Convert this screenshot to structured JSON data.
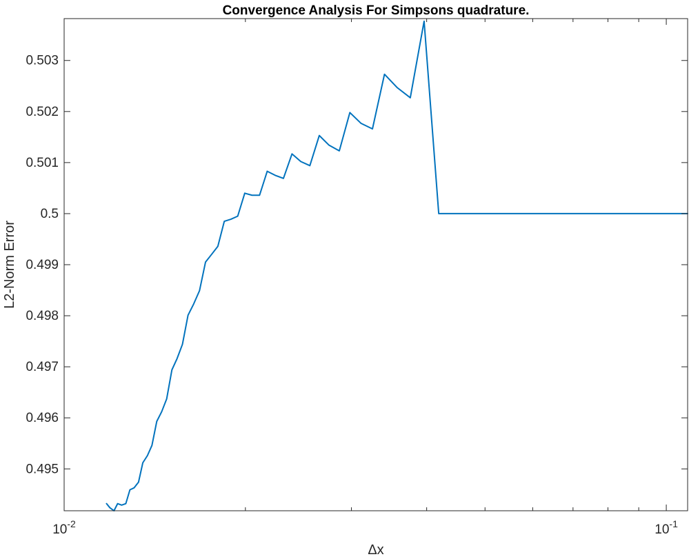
{
  "chart_data": {
    "type": "line",
    "title": "Convergence Analysis For Simpsons quadrature.",
    "xlabel": "Δx",
    "ylabel": "L2-Norm Error",
    "xscale": "log",
    "yscale": "linear",
    "xlim": [
      0.01,
      0.1085
    ],
    "ylim": [
      0.49418,
      0.50382
    ],
    "grid": false,
    "legend": "none",
    "x_ticks": [
      {
        "value": 0.01,
        "base": "10",
        "exp": "-2"
      },
      {
        "value": 0.1,
        "base": "10",
        "exp": "-1"
      }
    ],
    "y_ticks": [
      {
        "value": 0.495,
        "label": "0.495"
      },
      {
        "value": 0.496,
        "label": "0.496"
      },
      {
        "value": 0.497,
        "label": "0.497"
      },
      {
        "value": 0.498,
        "label": "0.498"
      },
      {
        "value": 0.499,
        "label": "0.499"
      },
      {
        "value": 0.5,
        "label": "0.5"
      },
      {
        "value": 0.501,
        "label": "0.501"
      },
      {
        "value": 0.502,
        "label": "0.502"
      },
      {
        "value": 0.503,
        "label": "0.503"
      }
    ],
    "series": [
      {
        "color": "#0072BD",
        "x": [
          0.01176,
          0.01191,
          0.0121,
          0.01227,
          0.01246,
          0.01266,
          0.01286,
          0.01307,
          0.01329,
          0.01351,
          0.01375,
          0.01399,
          0.01425,
          0.01452,
          0.0148,
          0.0151,
          0.0154,
          0.01572,
          0.01606,
          0.01641,
          0.01678,
          0.01717,
          0.01757,
          0.018,
          0.01845,
          0.01892,
          0.01942,
          0.01995,
          0.02051,
          0.02111,
          0.02174,
          0.02242,
          0.02313,
          0.0239,
          0.02472,
          0.02559,
          0.02653,
          0.02754,
          0.02864,
          0.02982,
          0.03111,
          0.03251,
          0.03404,
          0.03572,
          0.03757,
          0.03961,
          0.04189,
          0.04443,
          0.04728,
          0.05051,
          0.05419,
          0.05843,
          0.06337,
          0.06919,
          0.07617,
          0.08463,
          0.1,
          0.1085
        ],
        "y": [
          0.49432,
          0.49424,
          0.49418,
          0.49432,
          0.49429,
          0.49432,
          0.49459,
          0.49463,
          0.49474,
          0.49512,
          0.49526,
          0.49546,
          0.49593,
          0.49612,
          0.49637,
          0.49694,
          0.49716,
          0.49744,
          0.49801,
          0.49823,
          0.49849,
          0.49905,
          0.4992,
          0.49936,
          0.49985,
          0.49989,
          0.49995,
          0.5004,
          0.50036,
          0.50036,
          0.50083,
          0.50075,
          0.50069,
          0.50117,
          0.50102,
          0.50094,
          0.50153,
          0.50134,
          0.50123,
          0.50198,
          0.50177,
          0.50166,
          0.50273,
          0.50247,
          0.50227,
          0.50377,
          0.5,
          0.5,
          0.5,
          0.5,
          0.5,
          0.5,
          0.5,
          0.5,
          0.5,
          0.5,
          0.5,
          0.5
        ]
      }
    ]
  }
}
